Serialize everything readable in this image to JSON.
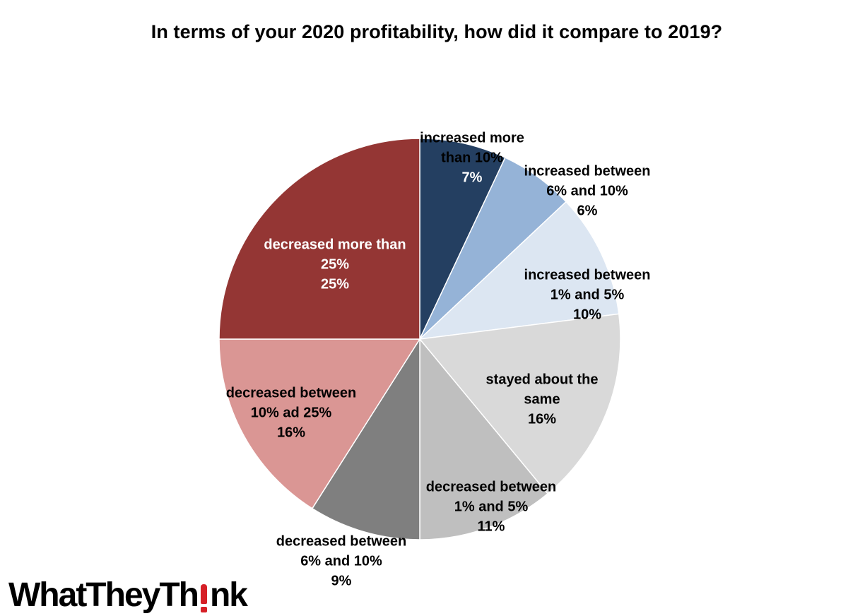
{
  "chart_data": {
    "type": "pie",
    "title": "In terms of your 2020 profitability, how did it compare to 2019?",
    "slices": [
      {
        "label_lines": [
          "increased more",
          "than 10%"
        ],
        "value": 7,
        "value_label": "7%",
        "color": "#243f61",
        "label_color": "#000000",
        "value_color": "#ffffff"
      },
      {
        "label_lines": [
          "increased between",
          "6% and 10%"
        ],
        "value": 6,
        "value_label": "6%",
        "color": "#95b3d7",
        "label_color": "#000000",
        "value_color": "#000000"
      },
      {
        "label_lines": [
          "increased between",
          "1% and 5%"
        ],
        "value": 10,
        "value_label": "10%",
        "color": "#dce6f2",
        "label_color": "#000000",
        "value_color": "#000000"
      },
      {
        "label_lines": [
          "stayed about the",
          "same"
        ],
        "value": 16,
        "value_label": "16%",
        "color": "#d9d9d9",
        "label_color": "#000000",
        "value_color": "#000000"
      },
      {
        "label_lines": [
          "decreased between",
          "1% and 5%"
        ],
        "value": 11,
        "value_label": "11%",
        "color": "#bfbfbf",
        "label_color": "#000000",
        "value_color": "#000000"
      },
      {
        "label_lines": [
          "decreased between",
          "6% and 10%"
        ],
        "value": 9,
        "value_label": "9%",
        "color": "#7f7f7f",
        "label_color": "#000000",
        "value_color": "#000000"
      },
      {
        "label_lines": [
          "decreased between",
          "10% ad 25%"
        ],
        "value": 16,
        "value_label": "16%",
        "color": "#da9694",
        "label_color": "#000000",
        "value_color": "#000000"
      },
      {
        "label_lines": [
          "decreased more than",
          "25%"
        ],
        "value": 25,
        "value_label": "25%",
        "color": "#943634",
        "label_color": "#ffffff",
        "value_color": "#ffffff"
      }
    ],
    "start": "12 o'clock",
    "direction": "clockwise",
    "legend": "none"
  },
  "logo": {
    "part1": "WhatTheyTh",
    "part2": "nk",
    "accent_color": "#d62027"
  }
}
